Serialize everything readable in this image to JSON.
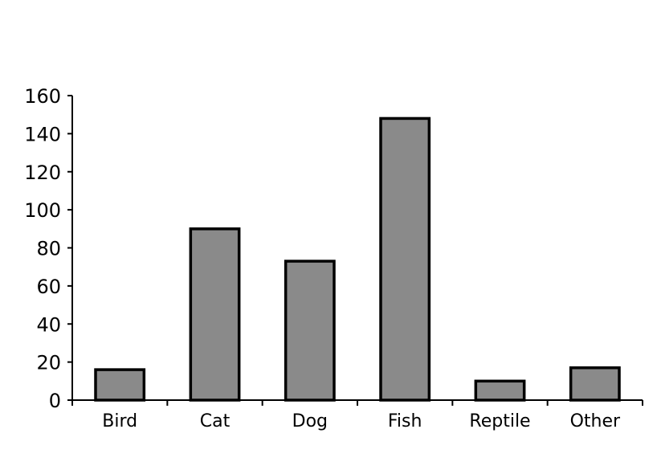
{
  "chart_data": {
    "type": "bar",
    "categories": [
      "Bird",
      "Cat",
      "Dog",
      "Fish",
      "Reptile",
      "Other"
    ],
    "values": [
      16,
      90,
      73,
      148,
      10,
      17
    ],
    "ylim": [
      0,
      160
    ],
    "yticks": [
      "0",
      "20",
      "40",
      "60",
      "80",
      "100",
      "120",
      "140",
      "160"
    ],
    "grid": false,
    "legend": "none",
    "bar_color": "#8a8a8a",
    "edge_color": "#000000"
  }
}
